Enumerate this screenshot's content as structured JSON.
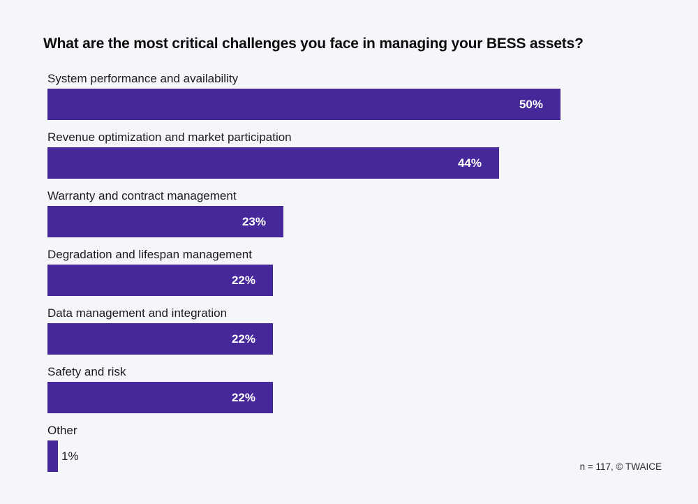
{
  "page": {
    "background_color": "#F5F6FA",
    "footnote": "n = 117, © TWAICE"
  },
  "chart_data": {
    "type": "bar",
    "orientation": "horizontal",
    "title": "What are the most critical challenges you face in managing your BESS assets?",
    "categories": [
      "System performance and availability",
      "Revenue optimization and market participation",
      "Warranty and contract management",
      "Degradation and lifespan management",
      "Data management and integration",
      "Safety and risk",
      "Other"
    ],
    "values": [
      50,
      44,
      23,
      22,
      22,
      22,
      1
    ],
    "value_labels": [
      "50%",
      "44%",
      "23%",
      "22%",
      "22%",
      "22%",
      "1%"
    ],
    "xlabel": "",
    "ylabel": "",
    "xlim": [
      0,
      50
    ],
    "grid": "off",
    "legend": "none",
    "bar_color": "#46289B",
    "value_label_color_inside": "#FFFFFF",
    "value_label_color_outside": "#1E1E1E",
    "sample_note": "n = 117, © TWAICE"
  }
}
